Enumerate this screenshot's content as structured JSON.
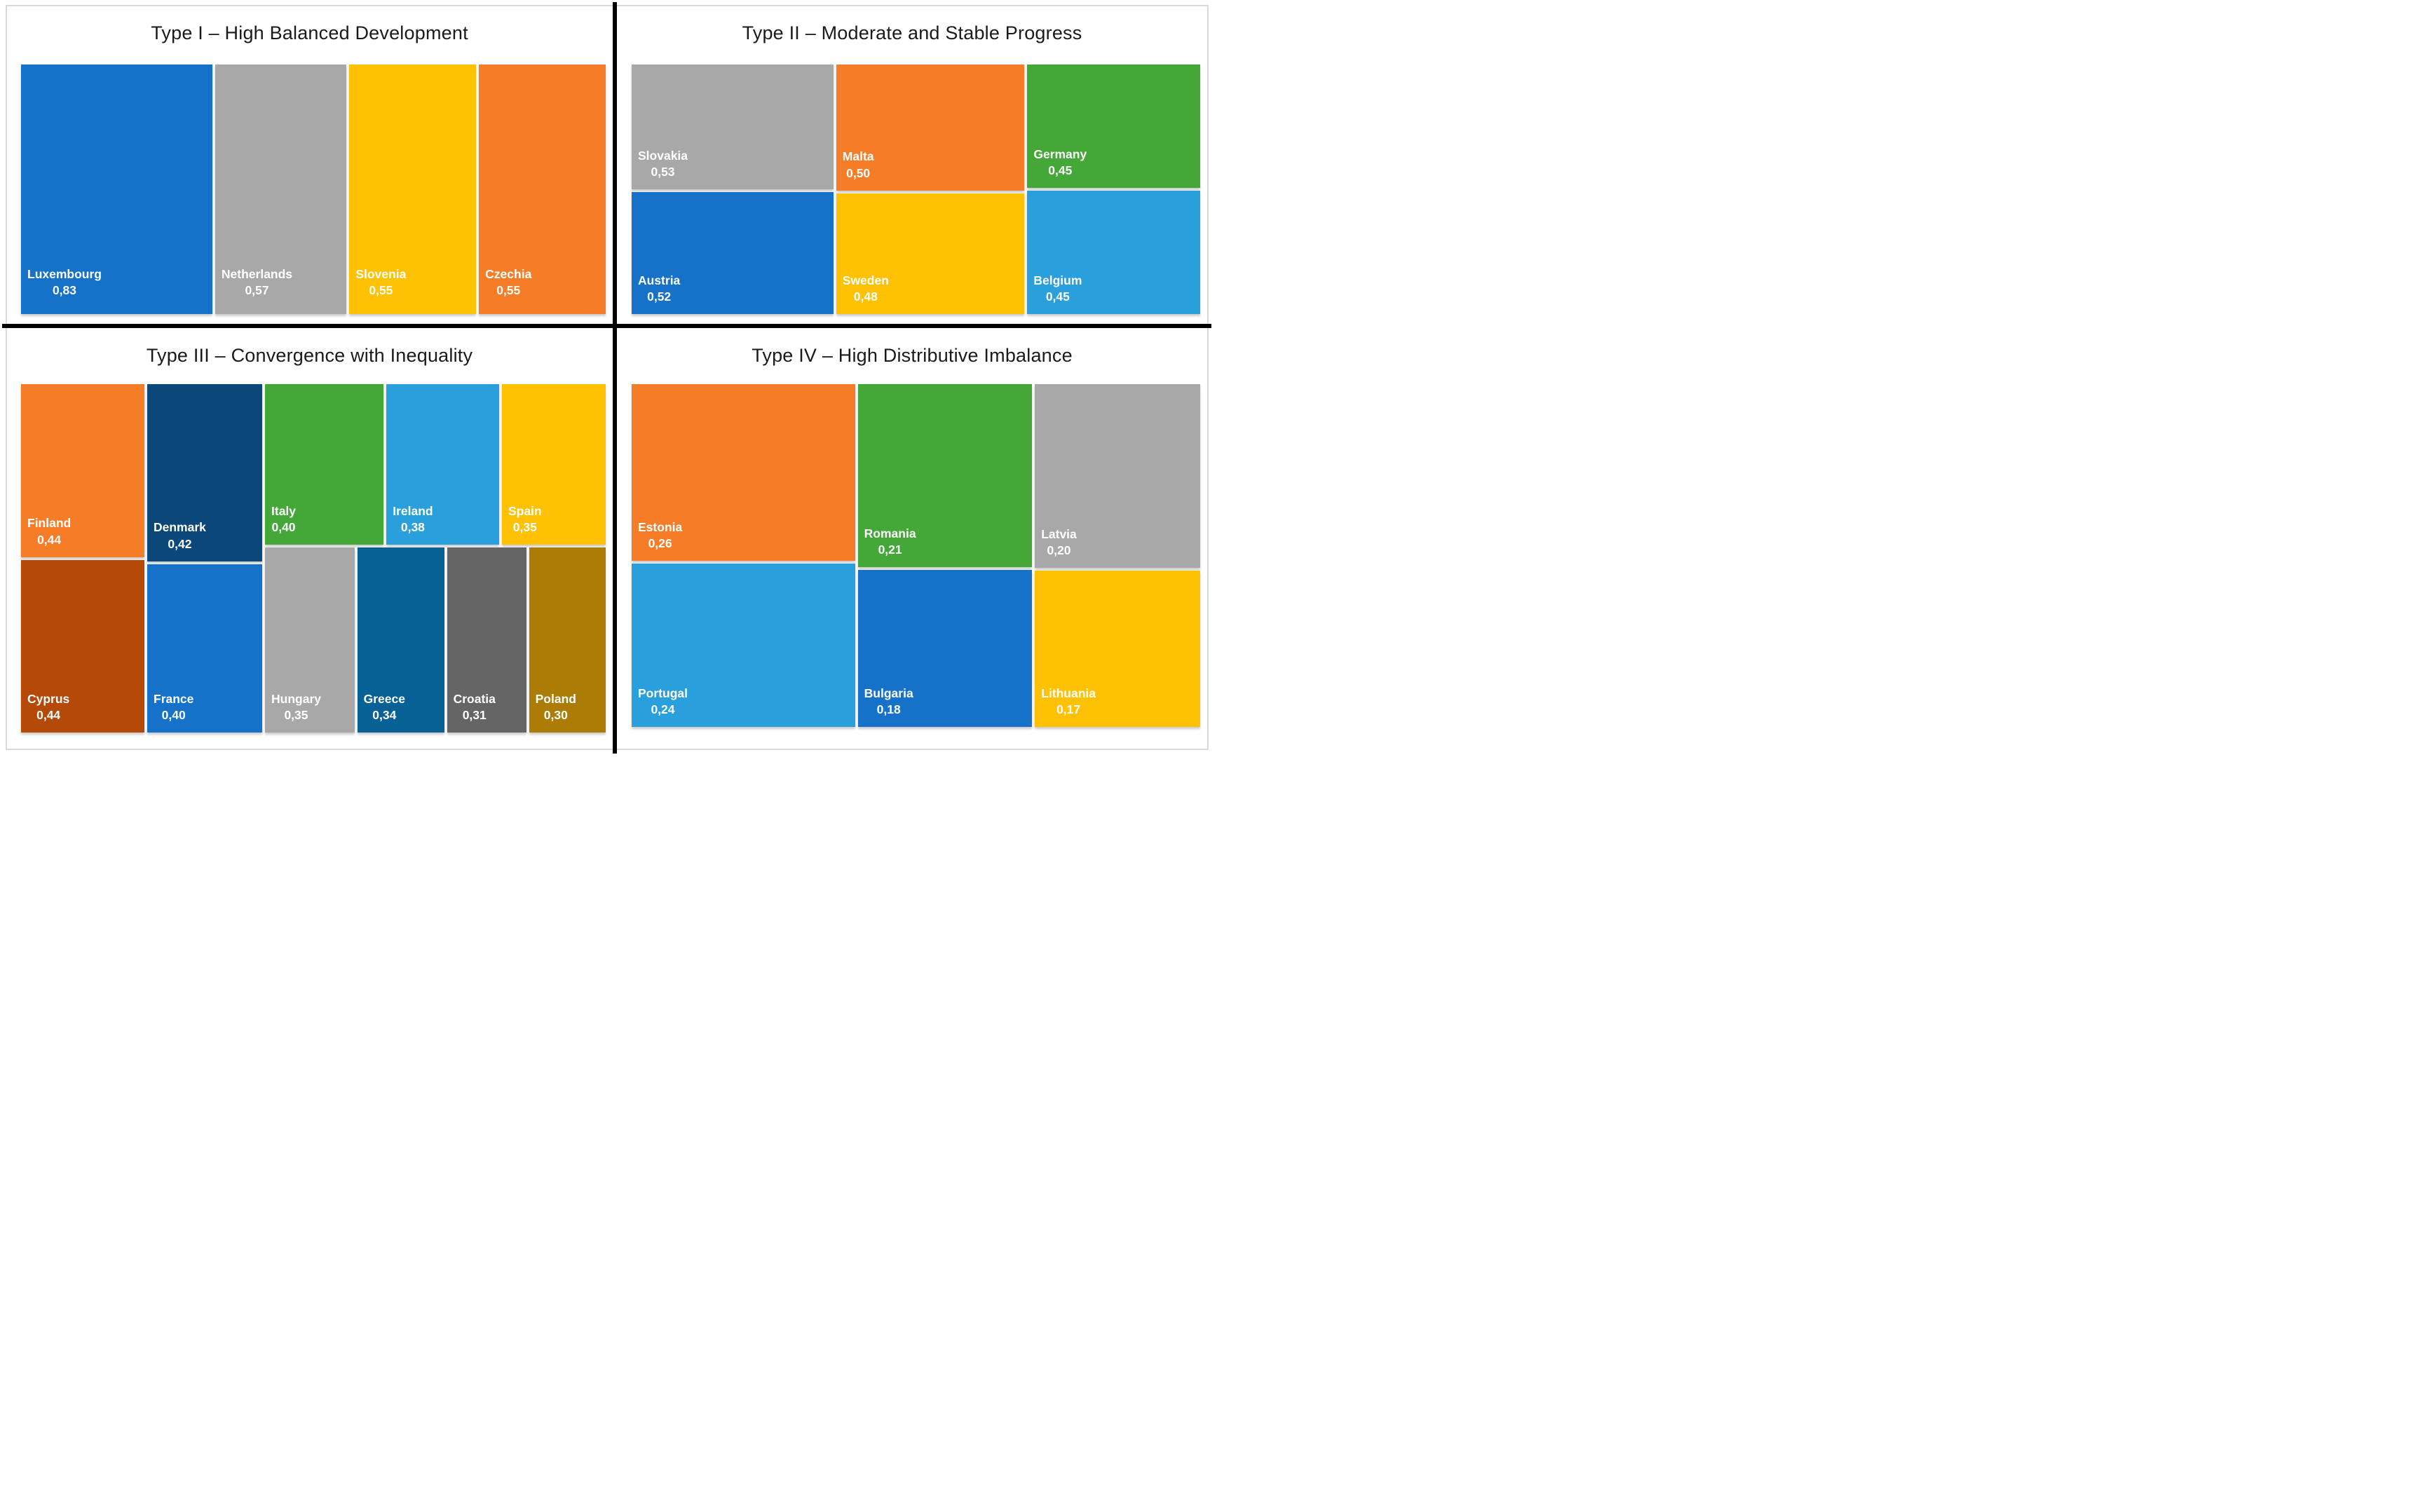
{
  "figure": {
    "background": "#FFFFFF",
    "frame_color": "#DADADA",
    "divider_color": "#000000",
    "title_text_color": "#1A1A1A",
    "cell_label_color": "#FFFFFF"
  },
  "chart_data": [
    {
      "type": "treemap",
      "title": "Type I – High Balanced Development",
      "items": [
        {
          "country": "Luxembourg",
          "value": 0.83,
          "value_label": "0,83",
          "color": "#1572C8"
        },
        {
          "country": "Netherlands",
          "value": 0.57,
          "value_label": "0,57",
          "color": "#A8A8A8"
        },
        {
          "country": "Slovenia",
          "value": 0.55,
          "value_label": "0,55",
          "color": "#FFC104"
        },
        {
          "country": "Czechia",
          "value": 0.55,
          "value_label": "0,55",
          "color": "#F57D28"
        }
      ],
      "layout": {
        "dir": "row",
        "children": [
          {
            "item": 0
          },
          {
            "item": 1
          },
          {
            "item": 2
          },
          {
            "item": 3
          }
        ]
      }
    },
    {
      "type": "treemap",
      "title": "Type II – Moderate and Stable Progress",
      "items": [
        {
          "country": "Slovakia",
          "value": 0.53,
          "value_label": "0,53",
          "color": "#A8A8A8"
        },
        {
          "country": "Malta",
          "value": 0.5,
          "value_label": "0,50",
          "color": "#F57D28"
        },
        {
          "country": "Germany",
          "value": 0.45,
          "value_label": "0,45",
          "color": "#44A838"
        },
        {
          "country": "Austria",
          "value": 0.52,
          "value_label": "0,52",
          "color": "#1572C8"
        },
        {
          "country": "Sweden",
          "value": 0.48,
          "value_label": "0,48",
          "color": "#FFC104"
        },
        {
          "country": "Belgium",
          "value": 0.45,
          "value_label": "0,45",
          "color": "#29A0DB"
        }
      ],
      "layout": {
        "dir": "row",
        "children": [
          {
            "dir": "column",
            "children": [
              {
                "item": 0
              },
              {
                "item": 3
              }
            ]
          },
          {
            "dir": "column",
            "children": [
              {
                "item": 1
              },
              {
                "item": 4
              }
            ]
          },
          {
            "dir": "column",
            "children": [
              {
                "item": 2
              },
              {
                "item": 5
              }
            ]
          }
        ]
      }
    },
    {
      "type": "treemap",
      "title": "Type III – Convergence with Inequality",
      "items": [
        {
          "country": "Finland",
          "value": 0.44,
          "value_label": "0,44",
          "color": "#F57D28"
        },
        {
          "country": "Denmark",
          "value": 0.42,
          "value_label": "0,42",
          "color": "#0B4778"
        },
        {
          "country": "Italy",
          "value": 0.4,
          "value_label": "0,40",
          "color": "#44A838"
        },
        {
          "country": "Ireland",
          "value": 0.38,
          "value_label": "0,38",
          "color": "#29A0DB"
        },
        {
          "country": "Spain",
          "value": 0.35,
          "value_label": "0,35",
          "color": "#FFC104"
        },
        {
          "country": "Cyprus",
          "value": 0.44,
          "value_label": "0,44",
          "color": "#B54A08"
        },
        {
          "country": "France",
          "value": 0.4,
          "value_label": "0,40",
          "color": "#1572C8"
        },
        {
          "country": "Hungary",
          "value": 0.35,
          "value_label": "0,35",
          "color": "#A8A8A8"
        },
        {
          "country": "Greece",
          "value": 0.34,
          "value_label": "0,34",
          "color": "#086195"
        },
        {
          "country": "Croatia",
          "value": 0.31,
          "value_label": "0,31",
          "color": "#656565"
        },
        {
          "country": "Poland",
          "value": 0.3,
          "value_label": "0,30",
          "color": "#AD7C04"
        }
      ],
      "layout": {
        "dir": "row",
        "children": [
          {
            "dir": "column",
            "children": [
              {
                "item": 0
              },
              {
                "item": 5
              }
            ]
          },
          {
            "dir": "column",
            "children": [
              {
                "item": 1
              },
              {
                "item": 6
              }
            ]
          },
          {
            "dir": "column",
            "children": [
              {
                "dir": "row",
                "children": [
                  {
                    "item": 2
                  },
                  {
                    "item": 3
                  },
                  {
                    "item": 4
                  }
                ]
              },
              {
                "dir": "row",
                "children": [
                  {
                    "item": 7
                  },
                  {
                    "item": 8
                  },
                  {
                    "item": 9
                  },
                  {
                    "item": 10
                  }
                ]
              }
            ]
          }
        ]
      }
    },
    {
      "type": "treemap",
      "title": "Type IV – High Distributive Imbalance",
      "items": [
        {
          "country": "Estonia",
          "value": 0.26,
          "value_label": "0,26",
          "color": "#F57D28"
        },
        {
          "country": "Romania",
          "value": 0.21,
          "value_label": "0,21",
          "color": "#44A838"
        },
        {
          "country": "Latvia",
          "value": 0.2,
          "value_label": "0,20",
          "color": "#A8A8A8"
        },
        {
          "country": "Portugal",
          "value": 0.24,
          "value_label": "0,24",
          "color": "#29A0DB"
        },
        {
          "country": "Bulgaria",
          "value": 0.18,
          "value_label": "0,18",
          "color": "#1572C8"
        },
        {
          "country": "Lithuania",
          "value": 0.17,
          "value_label": "0,17",
          "color": "#FFC104"
        }
      ],
      "layout": {
        "dir": "row",
        "children": [
          {
            "dir": "column",
            "children": [
              {
                "item": 0
              },
              {
                "item": 3
              }
            ]
          },
          {
            "dir": "column",
            "children": [
              {
                "item": 1
              },
              {
                "item": 4
              }
            ]
          },
          {
            "dir": "column",
            "children": [
              {
                "item": 2
              },
              {
                "item": 5
              }
            ]
          }
        ]
      }
    }
  ]
}
